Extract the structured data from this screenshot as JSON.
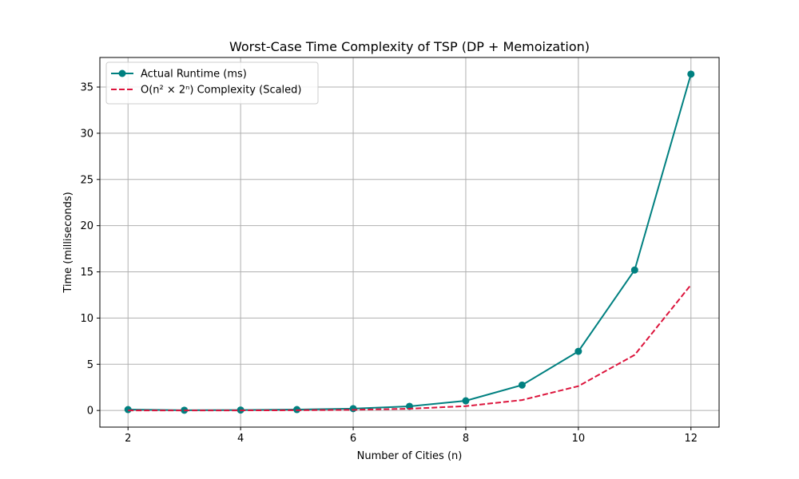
{
  "chart_data": {
    "type": "line",
    "title": "Worst-Case Time Complexity of TSP (DP + Memoization)",
    "xlabel": "Number of Cities (n)",
    "ylabel": "Time (milliseconds)",
    "xlim": [
      1.5,
      12.5
    ],
    "ylim": [
      -1.8,
      38.2
    ],
    "xticks": [
      2,
      4,
      6,
      8,
      10,
      12
    ],
    "yticks": [
      0,
      5,
      10,
      15,
      20,
      25,
      30,
      35
    ],
    "grid": true,
    "legend_position": "top-left",
    "x": [
      2,
      3,
      4,
      5,
      6,
      7,
      8,
      9,
      10,
      11,
      12
    ],
    "series": [
      {
        "name": "Actual Runtime (ms)",
        "color": "#008080",
        "line_style": "solid",
        "marker": "circle",
        "values": [
          0.1,
          0.03,
          0.05,
          0.1,
          0.2,
          0.45,
          1.05,
          2.75,
          6.4,
          15.2,
          36.4
        ]
      },
      {
        "name": "O(n² × 2ⁿ) Complexity (Scaled)",
        "color": "#dc143c",
        "line_style": "dashed",
        "marker": "none",
        "values": [
          0.0005,
          0.0022,
          0.0078,
          0.025,
          0.0709,
          0.1882,
          0.4705,
          1.1293,
          2.6351,
          6.0135,
          13.6015
        ]
      }
    ]
  }
}
